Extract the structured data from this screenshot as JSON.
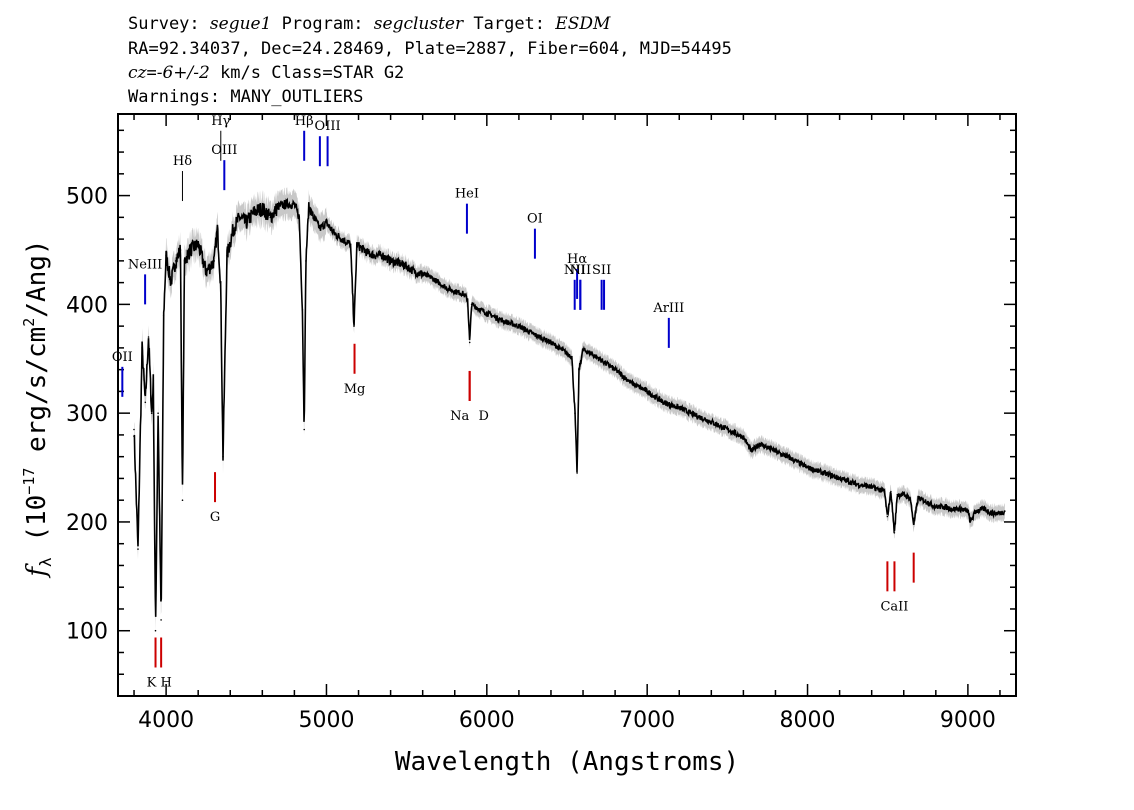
{
  "header": {
    "survey_key": "Survey:",
    "survey_val": "segue1",
    "program_key": "Program:",
    "program_val": "segcluster",
    "target_key": "Target:",
    "target_val": "ESDM",
    "line2": "RA=92.34037, Dec=24.28469, Plate=2887, Fiber=604, MJD=54495",
    "cz_var": "cz",
    "cz_eq": "=",
    "cz_val": "-6+/-2",
    "cz_rest": " km/s Class=STAR G2",
    "line4": "Warnings: MANY_OUTLIERS"
  },
  "chart_data": {
    "type": "line",
    "title": "",
    "xlabel": "Wavelength (Angstroms)",
    "ylabel_symbol": "f",
    "ylabel_sub": "λ",
    "ylabel_pre": " (10",
    "ylabel_exp": "−17",
    "ylabel_mid": " erg/s/cm",
    "ylabel_exp2": "2",
    "ylabel_post": "/Ang)",
    "xlim": [
      3700,
      9300
    ],
    "ylim": [
      40,
      575
    ],
    "x_ticks": [
      4000,
      5000,
      6000,
      7000,
      8000,
      9000
    ],
    "x_tick_labels": [
      "4000",
      "5000",
      "6000",
      "7000",
      "8000",
      "9000"
    ],
    "y_ticks": [
      100,
      200,
      300,
      400,
      500
    ],
    "y_tick_labels": [
      "100",
      "200",
      "300",
      "400",
      "500"
    ],
    "x_minor_step": 200,
    "y_minor_step": 20,
    "series": [
      {
        "color": "#000000",
        "x": [
          3800,
          3825,
          3850,
          3870,
          3890,
          3910,
          3920,
          3934,
          3950,
          3969,
          3985,
          4000,
          4030,
          4060,
          4090,
          4102,
          4115,
          4150,
          4200,
          4250,
          4300,
          4320,
          4340,
          4355,
          4380,
          4420,
          4460,
          4500,
          4550,
          4600,
          4650,
          4700,
          4750,
          4800,
          4830,
          4850,
          4861,
          4872,
          4890,
          4920,
          4960,
          5000,
          5050,
          5100,
          5150,
          5172,
          5190,
          5250,
          5300,
          5350,
          5400,
          5450,
          5500,
          5550,
          5600,
          5650,
          5700,
          5750,
          5800,
          5850,
          5880,
          5893,
          5905,
          5950,
          6000,
          6100,
          6200,
          6300,
          6400,
          6450,
          6500,
          6530,
          6550,
          6563,
          6575,
          6600,
          6650,
          6700,
          6800,
          6900,
          7000,
          7100,
          7200,
          7300,
          7400,
          7500,
          7600,
          7650,
          7700,
          7800,
          7900,
          8000,
          8100,
          8200,
          8300,
          8400,
          8480,
          8498,
          8520,
          8542,
          8560,
          8600,
          8640,
          8662,
          8690,
          8750,
          8800,
          8850,
          8900,
          8950,
          9000,
          9015,
          9050,
          9100,
          9150,
          9200,
          9230
        ],
        "y": [
          285,
          175,
          360,
          310,
          370,
          300,
          330,
          100,
          300,
          110,
          390,
          445,
          420,
          440,
          450,
          220,
          440,
          450,
          455,
          430,
          440,
          470,
          420,
          260,
          445,
          470,
          480,
          475,
          485,
          488,
          480,
          490,
          492,
          492,
          480,
          395,
          285,
          440,
          490,
          480,
          470,
          475,
          465,
          460,
          455,
          380,
          455,
          448,
          445,
          445,
          440,
          438,
          435,
          430,
          428,
          425,
          420,
          415,
          412,
          410,
          405,
          365,
          400,
          396,
          392,
          385,
          380,
          372,
          365,
          360,
          355,
          352,
          300,
          245,
          340,
          358,
          355,
          350,
          340,
          328,
          320,
          310,
          305,
          298,
          292,
          285,
          278,
          265,
          272,
          265,
          258,
          250,
          245,
          240,
          235,
          232,
          228,
          205,
          228,
          190,
          225,
          225,
          222,
          198,
          222,
          218,
          214,
          214,
          212,
          212,
          210,
          200,
          210,
          212,
          208,
          208,
          210
        ]
      }
    ],
    "noise_band_color": "#c8c8c8",
    "emission_lines": [
      {
        "label": "OII",
        "x": 3727,
        "y": 315,
        "color": "#0000cc"
      },
      {
        "label": "NeIII",
        "x": 3869,
        "y": 400,
        "color": "#0000cc"
      },
      {
        "label": "Hδ",
        "x": 4102,
        "y": 495,
        "color": "#000000"
      },
      {
        "label": "Hγ",
        "x": 4341,
        "y": 532,
        "color": "#000000"
      },
      {
        "label": "OIII",
        "x": 4363,
        "y": 505,
        "color": "#0000cc"
      },
      {
        "label": "Hβ",
        "x": 4861,
        "y": 532,
        "color": "#0000cc"
      },
      {
        "label": "",
        "x": 4959,
        "y": 527,
        "color": "#0000cc"
      },
      {
        "label": "OIII",
        "x": 5007,
        "y": 527,
        "color": "#0000cc"
      },
      {
        "label": "HeI",
        "x": 5876,
        "y": 465,
        "color": "#0000cc"
      },
      {
        "label": "OI",
        "x": 6300,
        "y": 442,
        "color": "#0000cc"
      },
      {
        "label": "NII",
        "x": 6548,
        "y": 395,
        "color": "#0000cc"
      },
      {
        "label": "Hα",
        "x": 6563,
        "y": 405,
        "color": "#0000cc"
      },
      {
        "label": "",
        "x": 6583,
        "y": 395,
        "color": "#0000cc"
      },
      {
        "label": "NII",
        "x": 6583,
        "y": 395,
        "color": "#0000cc"
      },
      {
        "label": "SII",
        "x": 6716,
        "y": 395,
        "color": "#0000cc"
      },
      {
        "label": "",
        "x": 6731,
        "y": 395,
        "color": "#0000cc"
      },
      {
        "label": "ArIII",
        "x": 7135,
        "y": 360,
        "color": "#0000cc"
      }
    ],
    "absorption_lines": [
      {
        "label": "K",
        "x": 3934,
        "y": 80,
        "color": "#cc0000"
      },
      {
        "label": "H",
        "x": 3969,
        "y": 80,
        "color": "#cc0000"
      },
      {
        "label": "G",
        "x": 4305,
        "y": 232,
        "color": "#cc0000"
      },
      {
        "label": "Mg",
        "x": 5175,
        "y": 350,
        "color": "#cc0000"
      },
      {
        "label": "Na",
        "x": 5893,
        "y": 325,
        "color": "#cc0000"
      },
      {
        "label": "D",
        "x": 5893,
        "y": 325,
        "color": "#cc0000"
      },
      {
        "label": "",
        "x": 8498,
        "y": 150,
        "color": "#cc0000"
      },
      {
        "label": "CaII",
        "x": 8542,
        "y": 150,
        "color": "#cc0000"
      },
      {
        "label": "",
        "x": 8662,
        "y": 158,
        "color": "#cc0000"
      }
    ]
  }
}
